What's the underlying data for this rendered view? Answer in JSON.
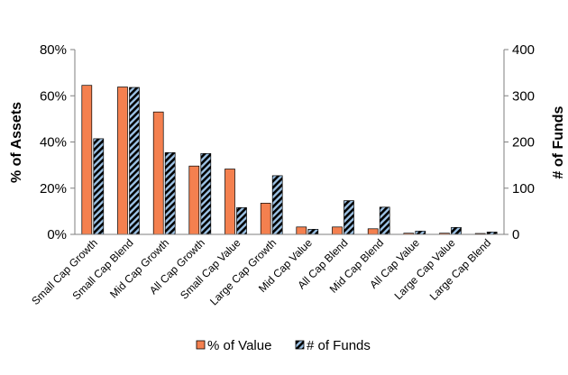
{
  "chart_data": {
    "type": "bar",
    "categories": [
      "Small Cap Growth",
      "Small Cap Blend",
      "Mid Cap Growth",
      "All Cap Growth",
      "Small Cap Value",
      "Large Cap Growth",
      "Mid Cap Value",
      "All Cap Blend",
      "Mid Cap Blend",
      "All Cap Value",
      "Large Cap Value",
      "Large Cap Blend"
    ],
    "series": [
      {
        "name": "% of Value",
        "axis": "left",
        "color": "#F4804F",
        "pattern": "solid",
        "values": [
          64.5,
          63.8,
          53.0,
          29.6,
          28.3,
          13.5,
          3.2,
          3.2,
          2.4,
          0.5,
          0.5,
          0.4
        ]
      },
      {
        "name": "# of Funds",
        "axis": "right",
        "color": "#9DC3E6",
        "pattern": "diagonal-stripes-black",
        "values": [
          207,
          318,
          177,
          175,
          58,
          127,
          11,
          73,
          59,
          7,
          15,
          5
        ]
      }
    ],
    "ylabel": "% of Assets",
    "ylabel_right": "# of Funds",
    "ylim": [
      0,
      80
    ],
    "ylim_right": [
      0,
      400
    ],
    "yticks": [
      "0%",
      "20%",
      "40%",
      "60%",
      "80%"
    ],
    "yticks_right": [
      "0",
      "100",
      "200",
      "300",
      "400"
    ],
    "grid": false,
    "legend": {
      "position": "bottom",
      "entries": [
        "% of Value",
        "# of Funds"
      ]
    }
  }
}
